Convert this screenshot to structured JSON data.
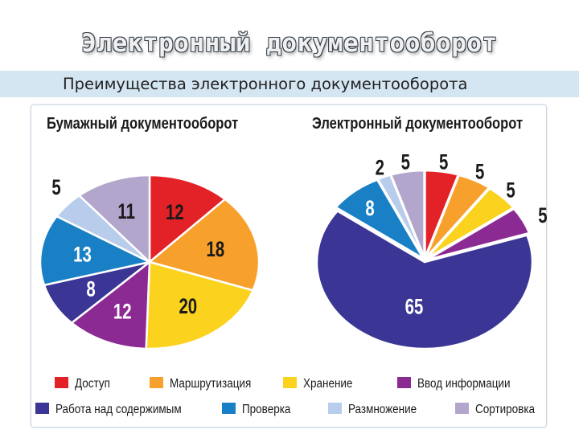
{
  "page": {
    "title": "Электронный документооборот",
    "subtitle": "Преимущества электронного документооборота"
  },
  "colors": {
    "Доступ": "#e32228",
    "Маршрутизация": "#f7a02c",
    "Хранение": "#fbd31e",
    "Ввод информации": "#8c2a93",
    "Работа над содержимым": "#3b3695",
    "Проверка": "#1a80c6",
    "Размножение": "#b8cceb",
    "Сортировка": "#b3a6cc"
  },
  "chart_data": [
    {
      "type": "pie",
      "title": "Бумажный документооборот",
      "labels": [
        "Доступ",
        "Маршрутизация",
        "Хранение",
        "Ввод информации",
        "Работа над содержимым",
        "Проверка",
        "Размножение",
        "Сортировка"
      ],
      "values": [
        12,
        18,
        20,
        12,
        8,
        13,
        5,
        11
      ]
    },
    {
      "type": "pie",
      "title": "Электронный документооборот",
      "labels": [
        "Доступ",
        "Маршрутизация",
        "Хранение",
        "Ввод информации",
        "Работа над содержимым",
        "Проверка",
        "Размножение",
        "Сортировка"
      ],
      "values": [
        5,
        5,
        5,
        5,
        65,
        8,
        2,
        5
      ]
    }
  ],
  "legend": {
    "items": [
      "Доступ",
      "Маршрутизация",
      "Хранение",
      "Ввод информации",
      "Работа над содержимым",
      "Проверка",
      "Размножение",
      "Сортировка"
    ]
  }
}
